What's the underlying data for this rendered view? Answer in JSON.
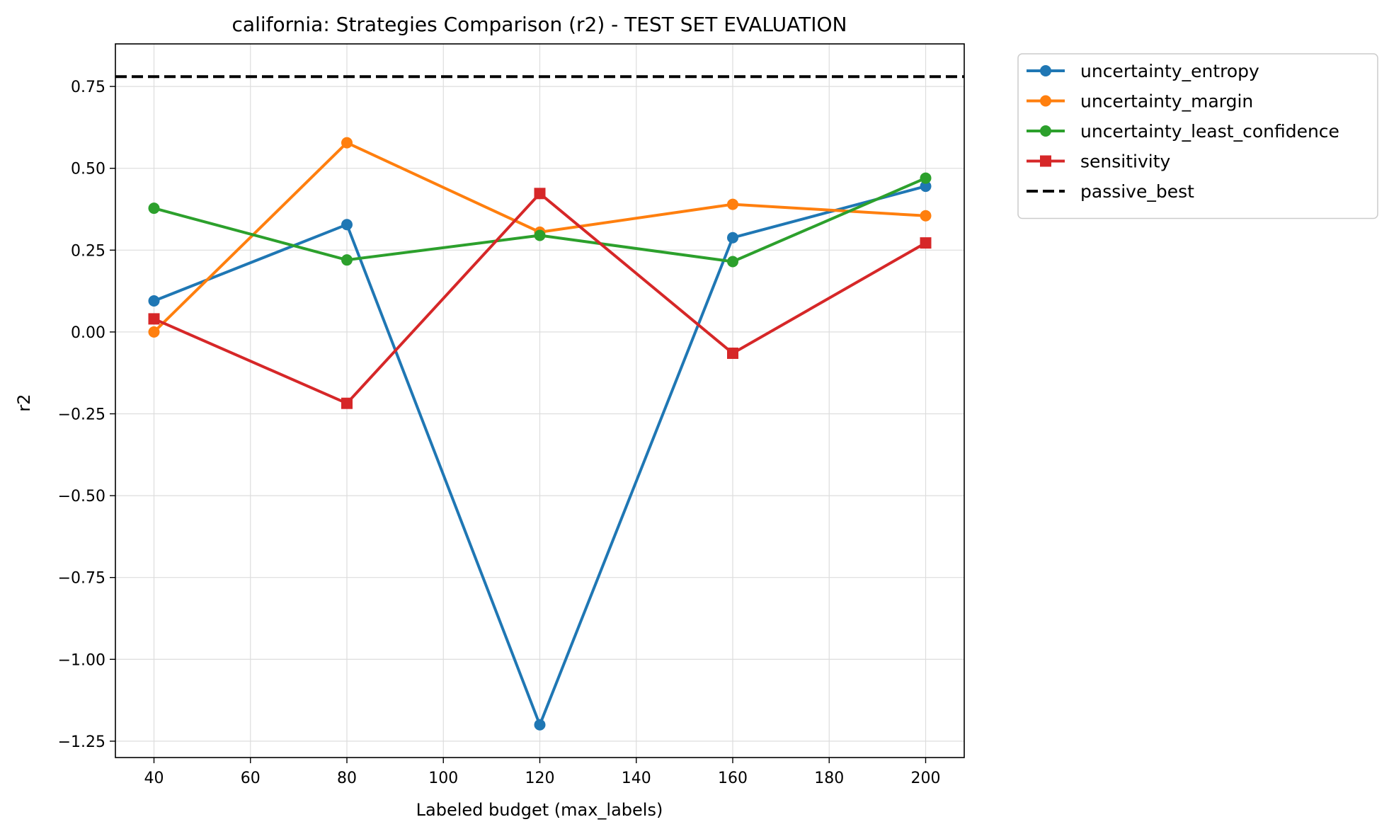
{
  "chart_data": {
    "type": "line",
    "title": "california: Strategies Comparison (r2) - TEST SET EVALUATION",
    "xlabel": "Labeled budget (max_labels)",
    "ylabel": "r2",
    "xlim": [
      32,
      208
    ],
    "ylim": [
      -1.3,
      0.88
    ],
    "x_ticks": [
      40,
      60,
      80,
      100,
      120,
      140,
      160,
      180,
      200
    ],
    "x_tick_labels": [
      "40",
      "60",
      "80",
      "100",
      "120",
      "140",
      "160",
      "180",
      "200"
    ],
    "y_ticks": [
      -1.25,
      -1.0,
      -0.75,
      -0.5,
      -0.25,
      0.0,
      0.25,
      0.5,
      0.75
    ],
    "y_tick_labels": [
      "−1.25",
      "−1.00",
      "−0.75",
      "−0.50",
      "−0.25",
      "0.00",
      "0.25",
      "0.50",
      "0.75"
    ],
    "grid": true,
    "legend_position": "outside-top-right",
    "x": [
      40,
      80,
      120,
      160,
      200
    ],
    "series": [
      {
        "name": "uncertainty_entropy",
        "color": "#1f77b4",
        "marker": "circle",
        "values": [
          0.095,
          0.328,
          -1.2,
          0.288,
          0.445
        ]
      },
      {
        "name": "uncertainty_margin",
        "color": "#ff7f0e",
        "marker": "circle",
        "values": [
          0.0,
          0.578,
          0.305,
          0.39,
          0.355
        ]
      },
      {
        "name": "uncertainty_least_confidence",
        "color": "#2ca02c",
        "marker": "circle",
        "values": [
          0.378,
          0.22,
          0.295,
          0.215,
          0.47
        ]
      },
      {
        "name": "sensitivity",
        "color": "#d62728",
        "marker": "square",
        "values": [
          0.04,
          -0.218,
          0.423,
          -0.065,
          0.272
        ]
      }
    ],
    "reference_lines": [
      {
        "name": "passive_best",
        "color": "#000000",
        "style": "dashed",
        "y": 0.78
      }
    ]
  }
}
